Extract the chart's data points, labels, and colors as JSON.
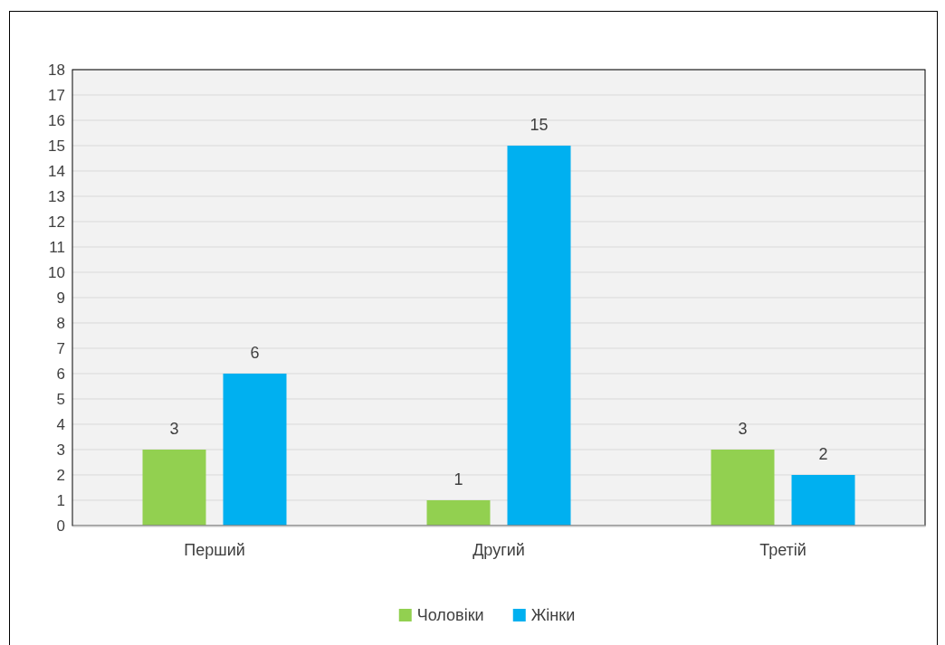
{
  "chart_data": {
    "type": "bar",
    "categories": [
      "Перший",
      "Другий",
      "Третій"
    ],
    "series": [
      {
        "name": "Чоловіки",
        "color": "#92d050",
        "values": [
          3,
          1,
          3
        ]
      },
      {
        "name": "Жінки",
        "color": "#00b0f0",
        "values": [
          6,
          15,
          2
        ]
      }
    ],
    "ylim": [
      0,
      18
    ],
    "yticks": [
      0,
      1,
      2,
      3,
      4,
      5,
      6,
      7,
      8,
      9,
      10,
      11,
      12,
      13,
      14,
      15,
      16,
      17,
      18
    ],
    "grid": "y",
    "data_labels": true,
    "legend": "bottom"
  }
}
